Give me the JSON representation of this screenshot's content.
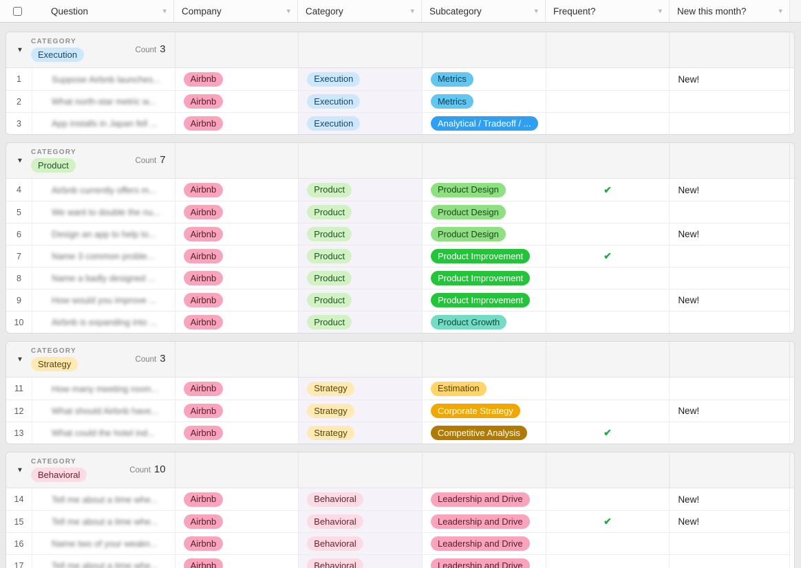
{
  "table": {
    "icons": {
      "column_menu": "▾",
      "collapse": "▼",
      "check": "✔"
    },
    "colors": {
      "accent_check": "#1fae3d",
      "category_column_tint": "#f5f2fa",
      "group_header_bg": "#f5f5f5"
    },
    "columns": [
      {
        "label": "Question"
      },
      {
        "label": "Company"
      },
      {
        "label": "Category"
      },
      {
        "label": "Subcategory"
      },
      {
        "label": "Frequent?"
      },
      {
        "label": "New this month?"
      }
    ],
    "groups": [
      {
        "field_label": "CATEGORY",
        "value": "Execution",
        "color": "blue-light",
        "count_label": "Count",
        "count": 3,
        "rows": [
          {
            "num": 1,
            "question": "Suppose Airbnb launches...",
            "company": {
              "label": "Airbnb",
              "color": "pink-mid"
            },
            "category": {
              "label": "Execution",
              "color": "blue-light"
            },
            "subcategory": {
              "label": "Metrics",
              "color": "blue-mid"
            },
            "frequent": false,
            "new_label": "New!"
          },
          {
            "num": 2,
            "question": "What north-star metric w...",
            "company": {
              "label": "Airbnb",
              "color": "pink-mid"
            },
            "category": {
              "label": "Execution",
              "color": "blue-light"
            },
            "subcategory": {
              "label": "Metrics",
              "color": "blue-mid"
            },
            "frequent": false,
            "new_label": ""
          },
          {
            "num": 3,
            "question": "App installs in Japan fell ...",
            "company": {
              "label": "Airbnb",
              "color": "pink-mid"
            },
            "category": {
              "label": "Execution",
              "color": "blue-light"
            },
            "subcategory": {
              "label": "Analytical / Tradeoff / ...",
              "color": "blue-bright"
            },
            "frequent": false,
            "new_label": ""
          }
        ]
      },
      {
        "field_label": "CATEGORY",
        "value": "Product",
        "color": "green-light",
        "count_label": "Count",
        "count": 7,
        "rows": [
          {
            "num": 4,
            "question": "Airbnb currently offers m...",
            "company": {
              "label": "Airbnb",
              "color": "pink-mid"
            },
            "category": {
              "label": "Product",
              "color": "green-light"
            },
            "subcategory": {
              "label": "Product Design",
              "color": "green-mid"
            },
            "frequent": true,
            "new_label": "New!"
          },
          {
            "num": 5,
            "question": "We want to double the nu...",
            "company": {
              "label": "Airbnb",
              "color": "pink-mid"
            },
            "category": {
              "label": "Product",
              "color": "green-light"
            },
            "subcategory": {
              "label": "Product Design",
              "color": "green-mid"
            },
            "frequent": false,
            "new_label": ""
          },
          {
            "num": 6,
            "question": "Design an app to help to...",
            "company": {
              "label": "Airbnb",
              "color": "pink-mid"
            },
            "category": {
              "label": "Product",
              "color": "green-light"
            },
            "subcategory": {
              "label": "Product Design",
              "color": "green-mid"
            },
            "frequent": false,
            "new_label": "New!"
          },
          {
            "num": 7,
            "question": "Name 3 common proble...",
            "company": {
              "label": "Airbnb",
              "color": "pink-mid"
            },
            "category": {
              "label": "Product",
              "color": "green-light"
            },
            "subcategory": {
              "label": "Product Improvement",
              "color": "green-bright"
            },
            "frequent": true,
            "new_label": ""
          },
          {
            "num": 8,
            "question": "Name a badly designed ...",
            "company": {
              "label": "Airbnb",
              "color": "pink-mid"
            },
            "category": {
              "label": "Product",
              "color": "green-light"
            },
            "subcategory": {
              "label": "Product Improvement",
              "color": "green-bright"
            },
            "frequent": false,
            "new_label": ""
          },
          {
            "num": 9,
            "question": "How would you improve ...",
            "company": {
              "label": "Airbnb",
              "color": "pink-mid"
            },
            "category": {
              "label": "Product",
              "color": "green-light"
            },
            "subcategory": {
              "label": "Product Improvement",
              "color": "green-bright"
            },
            "frequent": false,
            "new_label": "New!"
          },
          {
            "num": 10,
            "question": "Airbnb is expanding into ...",
            "company": {
              "label": "Airbnb",
              "color": "pink-mid"
            },
            "category": {
              "label": "Product",
              "color": "green-light"
            },
            "subcategory": {
              "label": "Product Growth",
              "color": "teal-mid"
            },
            "frequent": false,
            "new_label": ""
          }
        ]
      },
      {
        "field_label": "CATEGORY",
        "value": "Strategy",
        "color": "yellow-light",
        "count_label": "Count",
        "count": 3,
        "rows": [
          {
            "num": 11,
            "question": "How many meeting room...",
            "company": {
              "label": "Airbnb",
              "color": "pink-mid"
            },
            "category": {
              "label": "Strategy",
              "color": "yellow-light"
            },
            "subcategory": {
              "label": "Estimation",
              "color": "yellow-mid"
            },
            "frequent": false,
            "new_label": ""
          },
          {
            "num": 12,
            "question": "What should Airbnb have...",
            "company": {
              "label": "Airbnb",
              "color": "pink-mid"
            },
            "category": {
              "label": "Strategy",
              "color": "yellow-light"
            },
            "subcategory": {
              "label": "Corporate Strategy",
              "color": "yellow-bright"
            },
            "frequent": false,
            "new_label": "New!"
          },
          {
            "num": 13,
            "question": "What could the hotel ind...",
            "company": {
              "label": "Airbnb",
              "color": "pink-mid"
            },
            "category": {
              "label": "Strategy",
              "color": "yellow-light"
            },
            "subcategory": {
              "label": "Competitive Analysis",
              "color": "yellow-dark"
            },
            "frequent": true,
            "new_label": ""
          }
        ]
      },
      {
        "field_label": "CATEGORY",
        "value": "Behavioral",
        "color": "pink-light",
        "count_label": "Count",
        "count": 10,
        "rows": [
          {
            "num": 14,
            "question": "Tell me about a time whe...",
            "company": {
              "label": "Airbnb",
              "color": "pink-mid"
            },
            "category": {
              "label": "Behavioral",
              "color": "pink-light"
            },
            "subcategory": {
              "label": "Leadership and Drive",
              "color": "pink-mid"
            },
            "frequent": false,
            "new_label": "New!"
          },
          {
            "num": 15,
            "question": "Tell me about a time whe...",
            "company": {
              "label": "Airbnb",
              "color": "pink-mid"
            },
            "category": {
              "label": "Behavioral",
              "color": "pink-light"
            },
            "subcategory": {
              "label": "Leadership and Drive",
              "color": "pink-mid"
            },
            "frequent": true,
            "new_label": "New!"
          },
          {
            "num": 16,
            "question": "Name two of your weakn...",
            "company": {
              "label": "Airbnb",
              "color": "pink-mid"
            },
            "category": {
              "label": "Behavioral",
              "color": "pink-light"
            },
            "subcategory": {
              "label": "Leadership and Drive",
              "color": "pink-mid"
            },
            "frequent": false,
            "new_label": ""
          },
          {
            "num": 17,
            "question": "Tell me about a time whe...",
            "company": {
              "label": "Airbnb",
              "color": "pink-mid"
            },
            "category": {
              "label": "Behavioral",
              "color": "pink-light"
            },
            "subcategory": {
              "label": "Leadership and Drive",
              "color": "pink-mid"
            },
            "frequent": false,
            "new_label": ""
          }
        ]
      }
    ]
  }
}
